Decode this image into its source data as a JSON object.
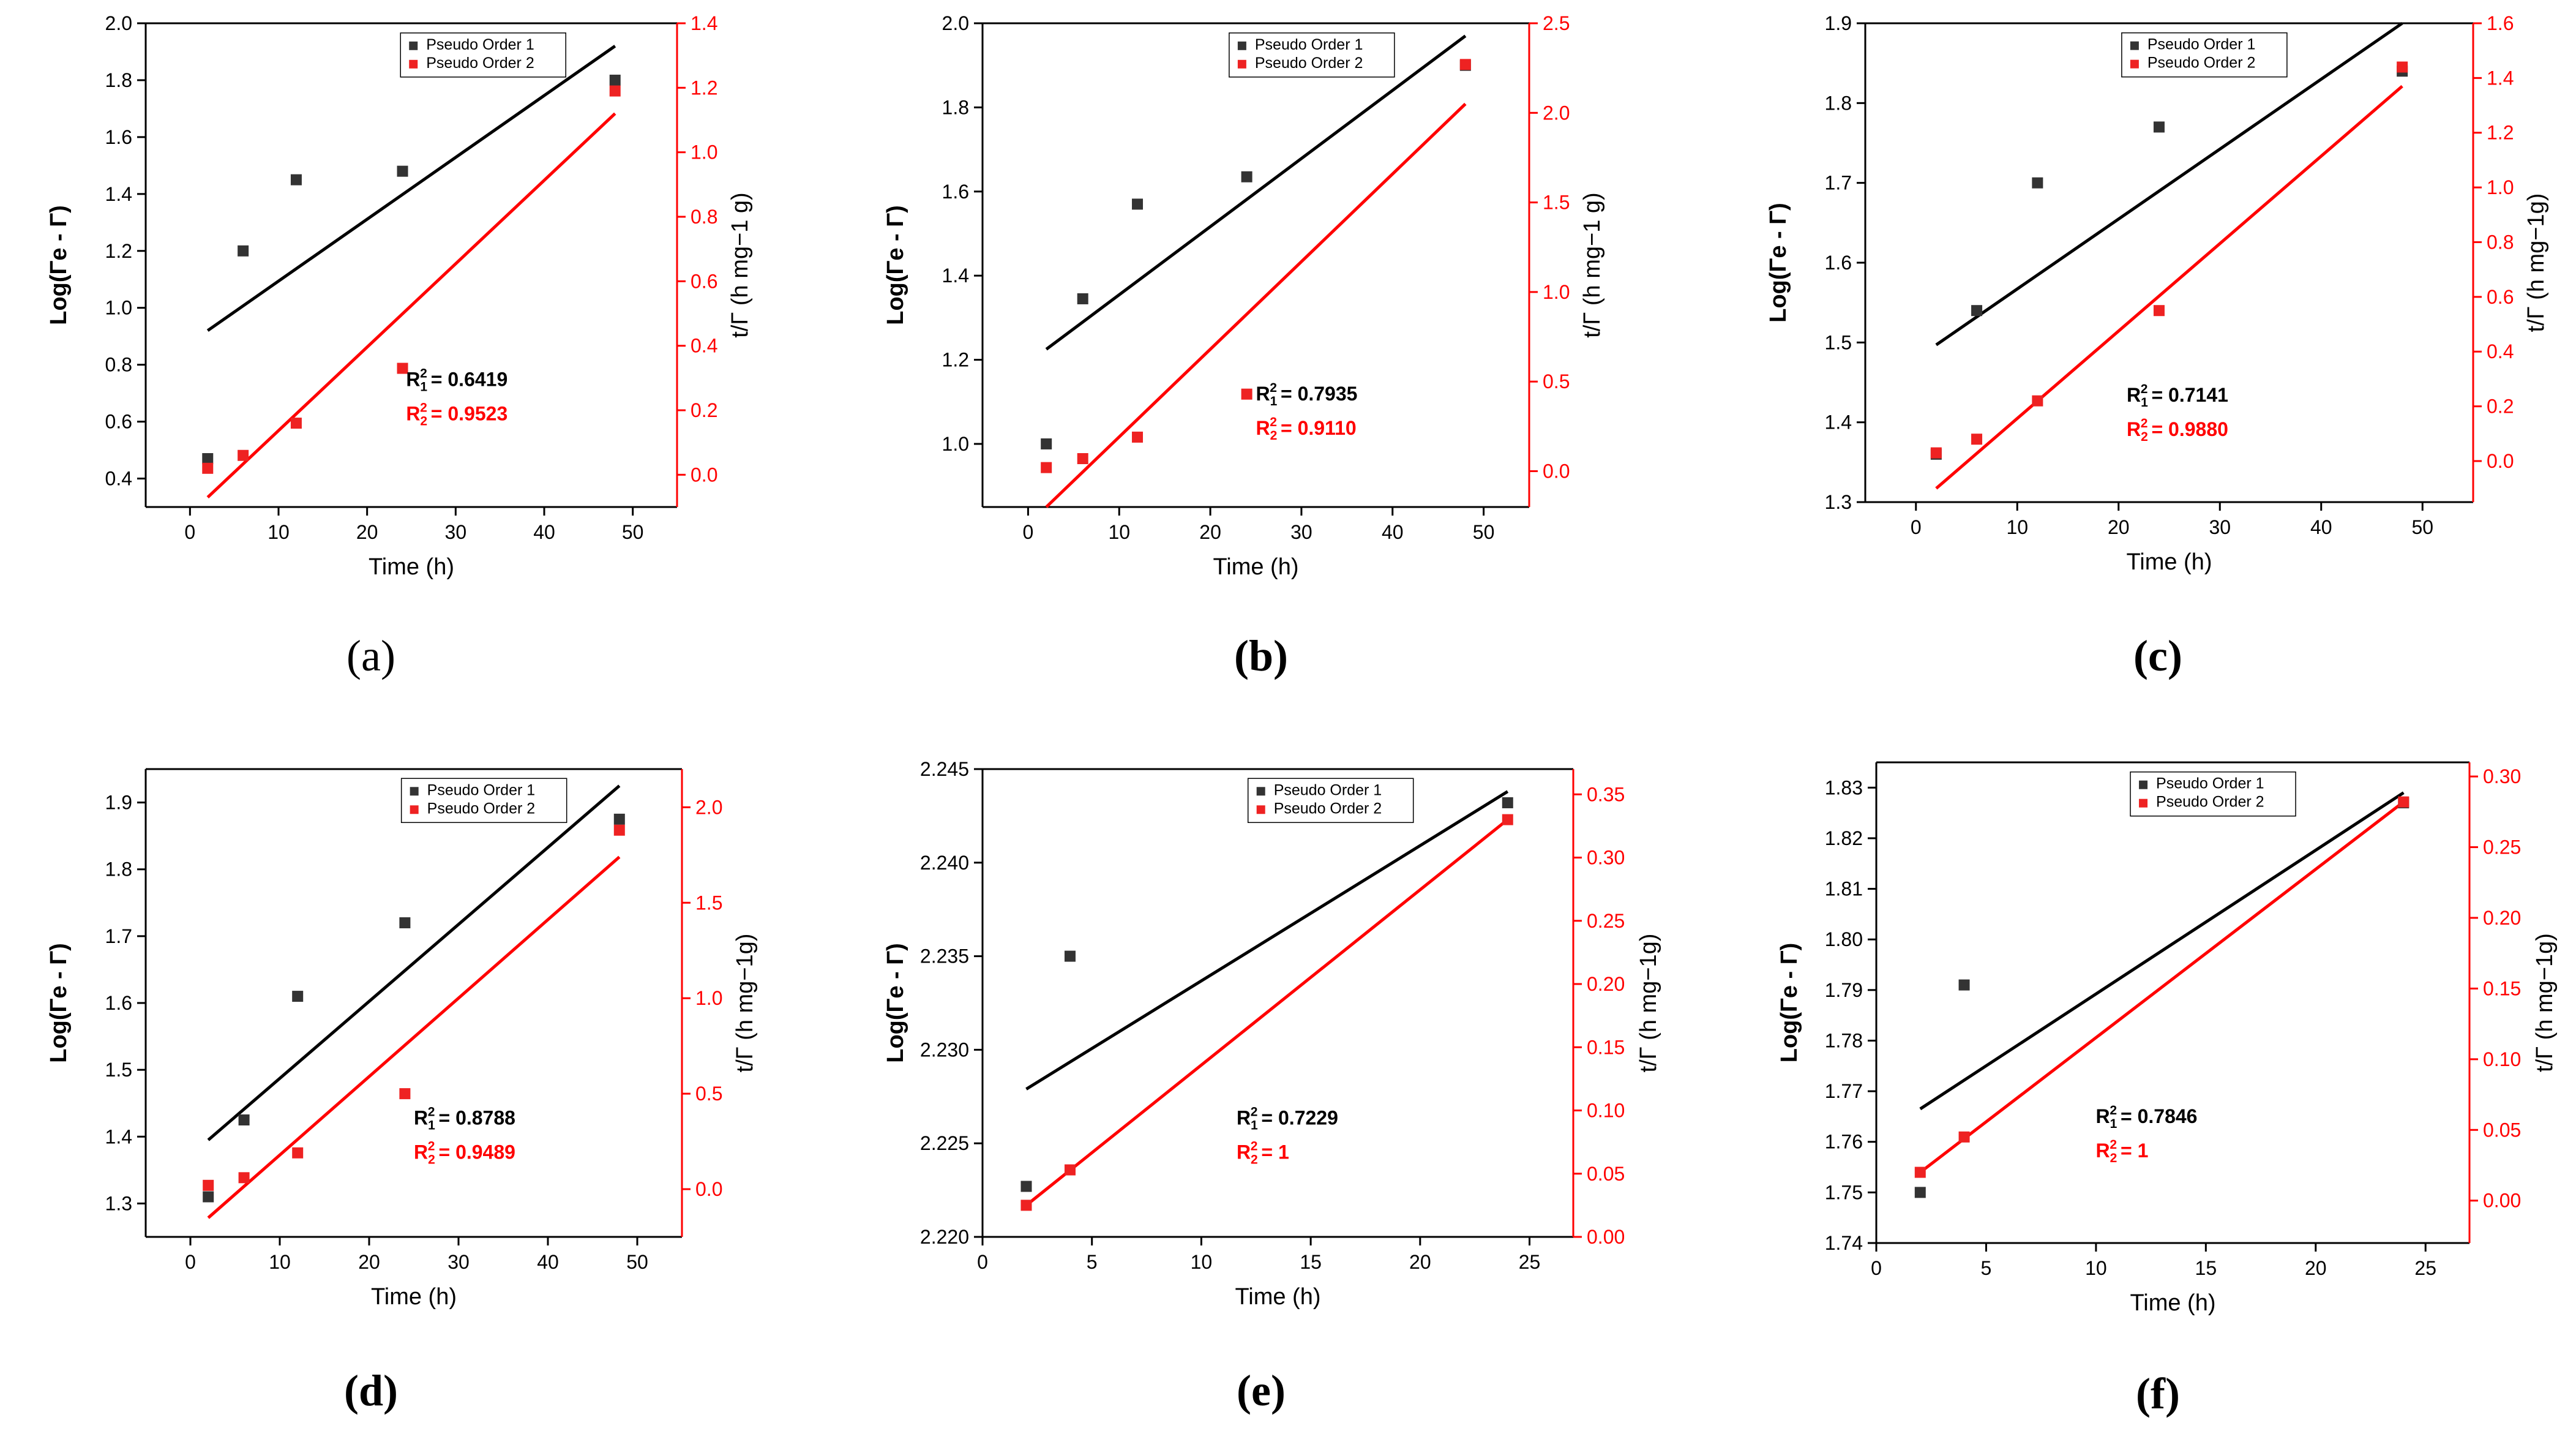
{
  "colors": {
    "order1": "#333333",
    "order2": "#ee2222",
    "line1": "#000000",
    "line2": "#ff0000"
  },
  "chart_data": [
    {
      "type": "scatter",
      "panel_label": "(a)",
      "xlabel": "Time (h)",
      "ylabel": "Log(Γe - Γ)",
      "y2label": "t/Γ (h mg−1 g)",
      "xlim": [
        -5,
        55
      ],
      "ylim": [
        0.3,
        2.0
      ],
      "y2lim": [
        -0.1,
        1.4
      ],
      "xticks": [
        0,
        10,
        20,
        30,
        40,
        50
      ],
      "yticks": [
        0.4,
        0.6,
        0.8,
        1.0,
        1.2,
        1.4,
        1.6,
        1.8,
        2.0
      ],
      "y2ticks": [
        0.0,
        0.2,
        0.4,
        0.6,
        0.8,
        1.0,
        1.2,
        1.4
      ],
      "tick_decimals": {
        "x": 0,
        "y": 1,
        "y2": 1
      },
      "legend": [
        "Pseudo Order 1",
        "Pseudo Order 2"
      ],
      "series": [
        {
          "name": "Pseudo Order 1",
          "axis": "left",
          "x": [
            2,
            6,
            12,
            24,
            48
          ],
          "y": [
            0.47,
            1.2,
            1.45,
            1.48,
            1.8
          ]
        },
        {
          "name": "Pseudo Order 2",
          "axis": "right",
          "x": [
            2,
            6,
            12,
            24,
            48
          ],
          "y": [
            0.02,
            0.06,
            0.16,
            0.33,
            1.19
          ]
        }
      ],
      "fits": [
        {
          "axis": "left",
          "x": [
            2,
            48
          ],
          "y": [
            0.92,
            1.92
          ]
        },
        {
          "axis": "right",
          "x": [
            2,
            48
          ],
          "y": [
            -0.07,
            1.12
          ]
        }
      ],
      "r2": [
        {
          "label": "R",
          "sub": "1",
          "sup": "2",
          "value": "= 0.6419"
        },
        {
          "label": "R",
          "sub": "2",
          "sup": "2",
          "value": "= 0.9523"
        }
      ]
    },
    {
      "type": "scatter",
      "panel_label": "(b)",
      "xlabel": "Time (h)",
      "ylabel": "Log(Γe - Γ)",
      "y2label": "t/Γ (h mg−1 g)",
      "xlim": [
        -5,
        55
      ],
      "ylim": [
        0.85,
        2.0
      ],
      "y2lim": [
        -0.2,
        2.5
      ],
      "xticks": [
        0,
        10,
        20,
        30,
        40,
        50
      ],
      "yticks": [
        1.0,
        1.2,
        1.4,
        1.6,
        1.8,
        2.0
      ],
      "y2ticks": [
        0.0,
        0.5,
        1.0,
        1.5,
        2.0,
        2.5
      ],
      "tick_decimals": {
        "x": 0,
        "y": 1,
        "y2": 1
      },
      "legend": [
        "Pseudo Order 1",
        "Pseudo Order 2"
      ],
      "series": [
        {
          "name": "Pseudo Order 1",
          "axis": "left",
          "x": [
            2,
            6,
            12,
            24,
            48
          ],
          "y": [
            1.0,
            1.345,
            1.57,
            1.635,
            1.9
          ]
        },
        {
          "name": "Pseudo Order 2",
          "axis": "right",
          "x": [
            2,
            6,
            12,
            24,
            48
          ],
          "y": [
            0.02,
            0.07,
            0.19,
            0.43,
            2.27
          ]
        }
      ],
      "fits": [
        {
          "axis": "left",
          "x": [
            2,
            48
          ],
          "y": [
            1.225,
            1.97
          ]
        },
        {
          "axis": "right",
          "x": [
            2,
            48
          ],
          "y": [
            -0.2,
            2.05
          ]
        }
      ],
      "r2": [
        {
          "label": "R",
          "sub": "1",
          "sup": "2",
          "value": "= 0.7935"
        },
        {
          "label": "R",
          "sub": "2",
          "sup": "2",
          "value": "= 0.9110"
        }
      ]
    },
    {
      "type": "scatter",
      "panel_label": "(c)",
      "xlabel": "Time (h)",
      "ylabel": "Log(Γe - Γ)",
      "y2label": "t/Γ (h mg−1g)",
      "xlim": [
        -5,
        55
      ],
      "ylim": [
        1.3,
        1.9
      ],
      "y2lim": [
        -0.15,
        1.6
      ],
      "xticks": [
        0,
        10,
        20,
        30,
        40,
        50
      ],
      "yticks": [
        1.3,
        1.4,
        1.5,
        1.6,
        1.7,
        1.8,
        1.9
      ],
      "y2ticks": [
        0.0,
        0.2,
        0.4,
        0.6,
        0.8,
        1.0,
        1.2,
        1.4,
        1.6
      ],
      "tick_decimals": {
        "x": 0,
        "y": 1,
        "y2": 1
      },
      "legend": [
        "Pseudo Order 1",
        "Pseudo Order 2"
      ],
      "series": [
        {
          "name": "Pseudo Order 1",
          "axis": "left",
          "x": [
            2,
            6,
            12,
            24,
            48
          ],
          "y": [
            1.36,
            1.54,
            1.7,
            1.77,
            1.84
          ]
        },
        {
          "name": "Pseudo Order 2",
          "axis": "right",
          "x": [
            2,
            6,
            12,
            24,
            48
          ],
          "y": [
            0.03,
            0.08,
            0.22,
            0.55,
            1.44
          ]
        }
      ],
      "fits": [
        {
          "axis": "left",
          "x": [
            2,
            48
          ],
          "y": [
            1.497,
            1.9
          ]
        },
        {
          "axis": "right",
          "x": [
            2,
            48
          ],
          "y": [
            -0.1,
            1.37
          ]
        }
      ],
      "r2": [
        {
          "label": "R",
          "sub": "1",
          "sup": "2",
          "value": "= 0.7141"
        },
        {
          "label": "R",
          "sub": "2",
          "sup": "2",
          "value": "= 0.9880"
        }
      ]
    },
    {
      "type": "scatter",
      "panel_label": "(d)",
      "xlabel": "Time (h)",
      "ylabel": "Log(Γe - Γ)",
      "y2label": "t/Γ (h mg−1g)",
      "xlim": [
        -5,
        55
      ],
      "ylim": [
        1.25,
        1.95
      ],
      "y2lim": [
        -0.25,
        2.2
      ],
      "xticks": [
        0,
        10,
        20,
        30,
        40,
        50
      ],
      "yticks": [
        1.3,
        1.4,
        1.5,
        1.6,
        1.7,
        1.8,
        1.9
      ],
      "y2ticks": [
        0.0,
        0.5,
        1.0,
        1.5,
        2.0
      ],
      "tick_decimals": {
        "x": 0,
        "y": 1,
        "y2": 1
      },
      "legend": [
        "Pseudo Order 1",
        "Pseudo Order 2"
      ],
      "series": [
        {
          "name": "Pseudo Order 1",
          "axis": "left",
          "x": [
            2,
            6,
            12,
            24,
            48
          ],
          "y": [
            1.31,
            1.425,
            1.61,
            1.72,
            1.875
          ]
        },
        {
          "name": "Pseudo Order 2",
          "axis": "right",
          "x": [
            2,
            6,
            12,
            24,
            48
          ],
          "y": [
            0.02,
            0.06,
            0.19,
            0.5,
            1.88
          ]
        }
      ],
      "fits": [
        {
          "axis": "left",
          "x": [
            2,
            48
          ],
          "y": [
            1.395,
            1.925
          ]
        },
        {
          "axis": "right",
          "x": [
            2,
            48
          ],
          "y": [
            -0.15,
            1.74
          ]
        }
      ],
      "r2": [
        {
          "label": "R",
          "sub": "1",
          "sup": "2",
          "value": "= 0.8788"
        },
        {
          "label": "R",
          "sub": "2",
          "sup": "2",
          "value": "= 0.9489"
        }
      ]
    },
    {
      "type": "scatter",
      "panel_label": "(e)",
      "xlabel": "Time (h)",
      "ylabel": "Log(Γe - Γ)",
      "y2label": "t/Γ (h mg−1g)",
      "xlim": [
        0,
        27
      ],
      "ylim": [
        2.22,
        2.245
      ],
      "y2lim": [
        0.0,
        0.37
      ],
      "xticks": [
        0,
        5,
        10,
        15,
        20,
        25
      ],
      "yticks": [
        2.22,
        2.225,
        2.23,
        2.235,
        2.24,
        2.245
      ],
      "y2ticks": [
        0.0,
        0.05,
        0.1,
        0.15,
        0.2,
        0.25,
        0.3,
        0.35
      ],
      "tick_decimals": {
        "x": 0,
        "y": 3,
        "y2": 2
      },
      "legend": [
        "Pseudo Order 1",
        "Pseudo Order 2"
      ],
      "series": [
        {
          "name": "Pseudo Order 1",
          "axis": "left",
          "x": [
            2,
            4,
            24
          ],
          "y": [
            2.2227,
            2.235,
            2.2432
          ]
        },
        {
          "name": "Pseudo Order 2",
          "axis": "right",
          "x": [
            2,
            4,
            24
          ],
          "y": [
            0.025,
            0.053,
            0.33
          ]
        }
      ],
      "fits": [
        {
          "axis": "left",
          "x": [
            2,
            24
          ],
          "y": [
            2.2279,
            2.2438
          ]
        },
        {
          "axis": "right",
          "x": [
            2,
            24
          ],
          "y": [
            0.025,
            0.33
          ]
        }
      ],
      "r2": [
        {
          "label": "R",
          "sub": "1",
          "sup": "2",
          "value": "= 0.7229"
        },
        {
          "label": "R",
          "sub": "2",
          "sup": "2",
          "value": "= 1"
        }
      ]
    },
    {
      "type": "scatter",
      "panel_label": "(f)",
      "xlabel": "Time (h)",
      "ylabel": "Log(Γe - Γ)",
      "y2label": "t/Γ (h mg−1g)",
      "xlim": [
        0,
        27
      ],
      "ylim": [
        1.74,
        1.835
      ],
      "y2lim": [
        -0.03,
        0.31
      ],
      "xticks": [
        0,
        5,
        10,
        15,
        20,
        25
      ],
      "yticks": [
        1.74,
        1.75,
        1.76,
        1.77,
        1.78,
        1.79,
        1.8,
        1.81,
        1.82,
        1.83
      ],
      "y2ticks": [
        0.0,
        0.05,
        0.1,
        0.15,
        0.2,
        0.25,
        0.3
      ],
      "tick_decimals": {
        "x": 0,
        "y": 2,
        "y2": 2
      },
      "legend": [
        "Pseudo Order 1",
        "Pseudo Order 2"
      ],
      "series": [
        {
          "name": "Pseudo Order 1",
          "axis": "left",
          "x": [
            2,
            4,
            24
          ],
          "y": [
            1.75,
            1.791,
            1.827
          ]
        },
        {
          "name": "Pseudo Order 2",
          "axis": "right",
          "x": [
            2,
            4,
            24
          ],
          "y": [
            0.02,
            0.045,
            0.282
          ]
        }
      ],
      "fits": [
        {
          "axis": "left",
          "x": [
            2,
            24
          ],
          "y": [
            1.7665,
            1.829
          ]
        },
        {
          "axis": "right",
          "x": [
            2,
            24
          ],
          "y": [
            0.02,
            0.282
          ]
        }
      ],
      "r2": [
        {
          "label": "R",
          "sub": "1",
          "sup": "2",
          "value": "= 0.7846"
        },
        {
          "label": "R",
          "sub": "2",
          "sup": "2",
          "value": "= 1"
        }
      ]
    }
  ]
}
